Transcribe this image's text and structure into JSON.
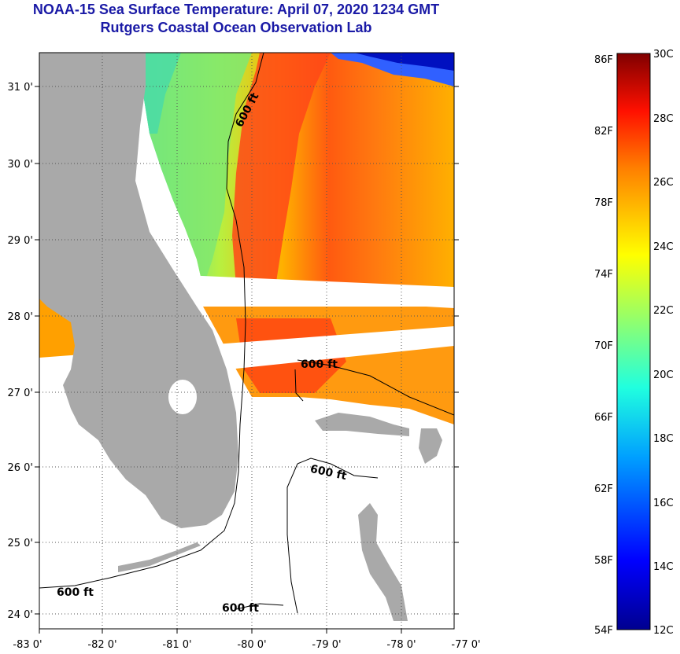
{
  "title": {
    "line1": "NOAA-15 Sea Surface Temperature:  April 07, 2020 1234 GMT",
    "line2": "Rutgers Coastal Ocean Observation Lab"
  },
  "map": {
    "lon_labels": [
      "-83 0'",
      "-82 0'",
      "-81 0'",
      "-80 0'",
      "-79 0'",
      "-78 0'",
      "-77 0'"
    ],
    "lat_labels": [
      "31 0'",
      "30 0'",
      "29 0'",
      "28 0'",
      "27 0'",
      "26 0'",
      "25 0'",
      "24 0'"
    ],
    "contour_labels": [
      "600 ft",
      "600 ft",
      "600 ft",
      "600 ft",
      "600 ft"
    ]
  },
  "colorbar": {
    "fahrenheit_labels": [
      "86F",
      "82F",
      "78F",
      "74F",
      "70F",
      "66F",
      "62F",
      "58F",
      "54F"
    ],
    "celsius_labels": [
      "30C",
      "28C",
      "26C",
      "24C",
      "22C",
      "20C",
      "18C",
      "16C",
      "14C",
      "12C"
    ]
  },
  "colors": {
    "title": "#1a1aa6",
    "land": "#a9a9a9",
    "cloud": "#ffffff"
  }
}
